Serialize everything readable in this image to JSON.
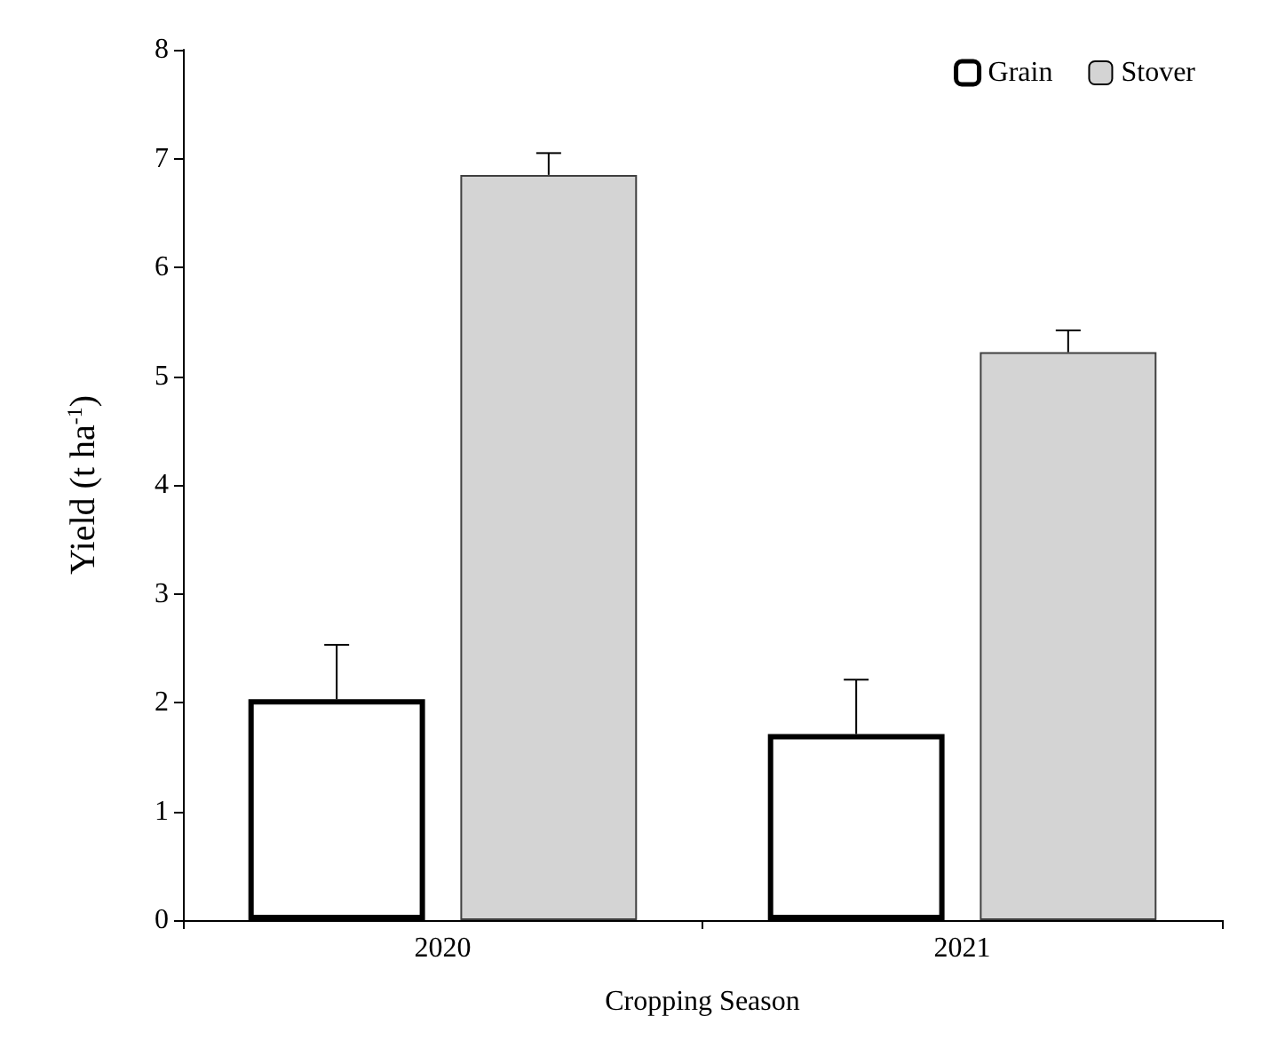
{
  "chart_data": {
    "type": "bar",
    "xlabel": "Cropping Season",
    "ylabel": "Yield (t ha$^{-1}$)",
    "categories": [
      "2020",
      "2021"
    ],
    "series": [
      {
        "name": "Grain",
        "color": "#ffffff",
        "values": [
          2.03,
          1.71
        ],
        "errors": [
          0.5,
          0.5
        ]
      },
      {
        "name": "Stover",
        "color": "#d4d4d4",
        "values": [
          6.85,
          5.22
        ],
        "errors": [
          0.2,
          0.2
        ]
      }
    ],
    "ylim": [
      0,
      8
    ],
    "yticks": [
      0,
      1,
      2,
      3,
      4,
      5,
      6,
      7,
      8
    ],
    "grid": false,
    "legend": "top right"
  }
}
